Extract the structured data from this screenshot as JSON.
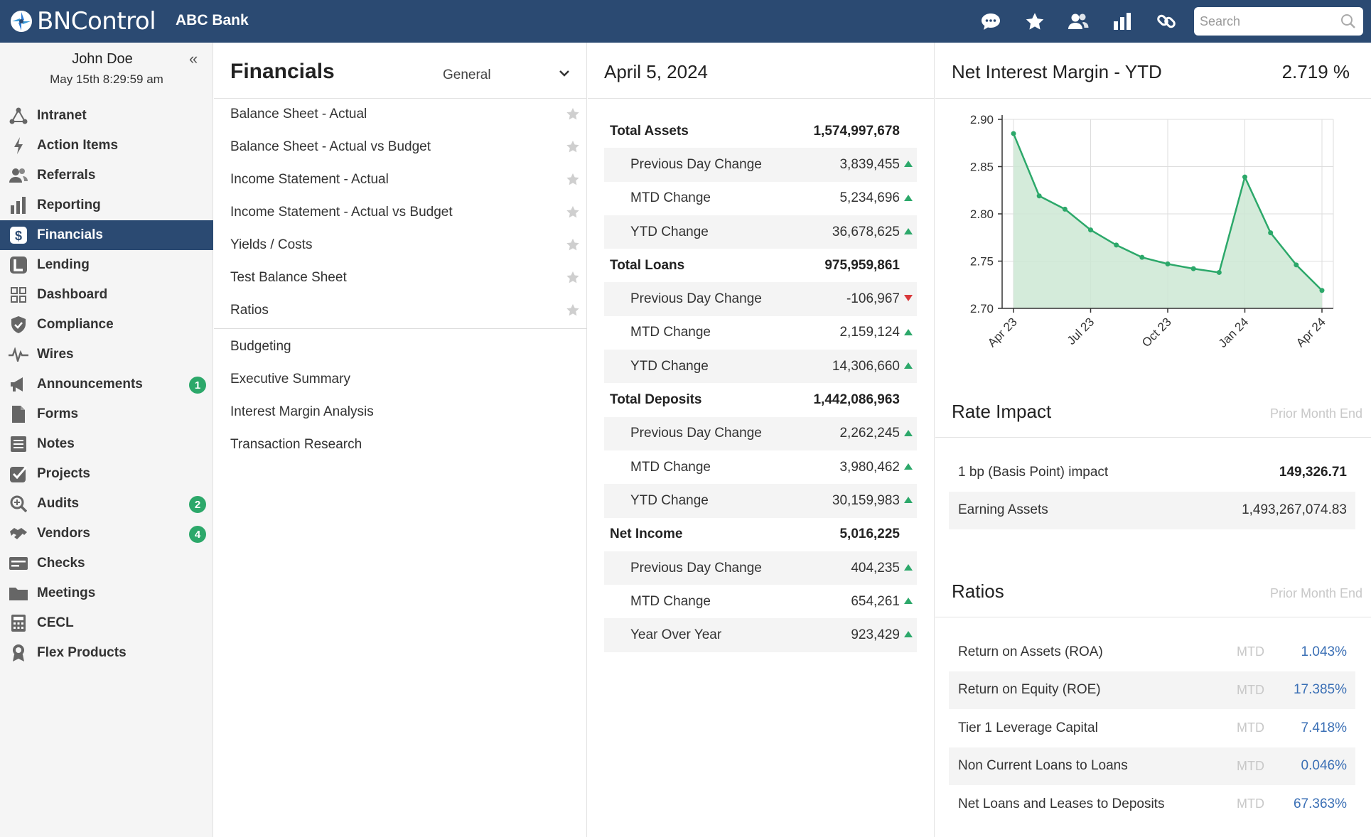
{
  "app": {
    "logo_text": "BNControl",
    "bank_name": "ABC Bank"
  },
  "topbar": {
    "icons": [
      "chat-icon",
      "star-icon",
      "users-icon",
      "bar-chart-icon",
      "link-icon"
    ],
    "search_placeholder": "Search"
  },
  "user": {
    "name": "John Doe",
    "time": "May 15th 8:29:59 am",
    "collapse": "«"
  },
  "sidebar": {
    "items": [
      {
        "label": "Intranet",
        "icon": "network-icon"
      },
      {
        "label": "Action Items",
        "icon": "bolt-icon"
      },
      {
        "label": "Referrals",
        "icon": "users-icon"
      },
      {
        "label": "Reporting",
        "icon": "bar-chart-icon"
      },
      {
        "label": "Financials",
        "icon": "dollar-icon",
        "active": true
      },
      {
        "label": "Lending",
        "icon": "lending-icon"
      },
      {
        "label": "Dashboard",
        "icon": "grid-icon"
      },
      {
        "label": "Compliance",
        "icon": "shield-icon"
      },
      {
        "label": "Wires",
        "icon": "pulse-icon"
      },
      {
        "label": "Announcements",
        "icon": "megaphone-icon",
        "badge": "1"
      },
      {
        "label": "Forms",
        "icon": "file-icon"
      },
      {
        "label": "Notes",
        "icon": "notes-icon"
      },
      {
        "label": "Projects",
        "icon": "check-square-icon"
      },
      {
        "label": "Audits",
        "icon": "magnify-icon",
        "badge": "2"
      },
      {
        "label": "Vendors",
        "icon": "handshake-icon",
        "badge": "4"
      },
      {
        "label": "Checks",
        "icon": "check-card-icon"
      },
      {
        "label": "Meetings",
        "icon": "folder-icon"
      },
      {
        "label": "CECL",
        "icon": "calculator-icon"
      },
      {
        "label": "Flex Products",
        "icon": "award-icon"
      }
    ]
  },
  "financials": {
    "title": "Financials",
    "select_value": "General",
    "starred": [
      "Balance Sheet - Actual",
      "Balance Sheet - Actual vs Budget",
      "Income Statement - Actual",
      "Income Statement - Actual vs Budget",
      "Yields / Costs",
      "Test Balance Sheet",
      "Ratios"
    ],
    "other": [
      "Budgeting",
      "Executive Summary",
      "Interest Margin Analysis",
      "Transaction Research"
    ]
  },
  "summary": {
    "date": "April 5, 2024",
    "rows": [
      {
        "label": "Total Assets",
        "value": "1,574,997,678",
        "kind": "head"
      },
      {
        "label": "Previous Day Change",
        "value": "3,839,455",
        "dir": "up"
      },
      {
        "label": "MTD Change",
        "value": "5,234,696",
        "dir": "up"
      },
      {
        "label": "YTD Change",
        "value": "36,678,625",
        "dir": "up"
      },
      {
        "label": "Total Loans",
        "value": "975,959,861",
        "kind": "head"
      },
      {
        "label": "Previous Day Change",
        "value": "-106,967",
        "dir": "down"
      },
      {
        "label": "MTD Change",
        "value": "2,159,124",
        "dir": "up"
      },
      {
        "label": "YTD Change",
        "value": "14,306,660",
        "dir": "up"
      },
      {
        "label": "Total Deposits",
        "value": "1,442,086,963",
        "kind": "head"
      },
      {
        "label": "Previous Day Change",
        "value": "2,262,245",
        "dir": "up"
      },
      {
        "label": "MTD Change",
        "value": "3,980,462",
        "dir": "up"
      },
      {
        "label": "YTD Change",
        "value": "30,159,983",
        "dir": "up"
      },
      {
        "label": "Net Income",
        "value": "5,016,225",
        "kind": "head"
      },
      {
        "label": "Previous Day Change",
        "value": "404,235",
        "dir": "up"
      },
      {
        "label": "MTD Change",
        "value": "654,261",
        "dir": "up"
      },
      {
        "label": "Year Over Year",
        "value": "923,429",
        "dir": "up"
      }
    ]
  },
  "nim": {
    "title": "Net Interest Margin - YTD",
    "value": "2.719 %"
  },
  "chart_data": {
    "type": "area",
    "title": "",
    "x_tick_labels": [
      "Apr 23",
      "Jul 23",
      "Oct 23",
      "Jan 24",
      "Apr 24"
    ],
    "y_ticks": [
      "2.90",
      "2.85",
      "2.80",
      "2.75",
      "2.70"
    ],
    "ylim": [
      2.7,
      2.9
    ],
    "x": [
      "Apr 23",
      "May 23",
      "Jun 23",
      "Jul 23",
      "Aug 23",
      "Sep 23",
      "Oct 23",
      "Nov 23",
      "Dec 23",
      "Jan 24",
      "Feb 24",
      "Mar 24",
      "Apr 24"
    ],
    "values": [
      2.885,
      2.819,
      2.805,
      2.783,
      2.767,
      2.754,
      2.747,
      2.742,
      2.738,
      2.839,
      2.78,
      2.746,
      2.719
    ],
    "grid": true,
    "colors": {
      "line": "#2ca86a",
      "fill": "#cde8d4"
    }
  },
  "rate_impact": {
    "title": "Rate Impact",
    "subtitle": "Prior Month End",
    "rows": [
      {
        "label": "1 bp (Basis Point) impact",
        "value": "149,326.71",
        "bold": true
      },
      {
        "label": "Earning Assets",
        "value": "1,493,267,074.83",
        "bold": false
      }
    ]
  },
  "ratios": {
    "title": "Ratios",
    "subtitle": "Prior Month End",
    "rows": [
      {
        "label": "Return on Assets (ROA)",
        "period": "MTD",
        "value": "1.043%"
      },
      {
        "label": "Return on Equity (ROE)",
        "period": "MTD",
        "value": "17.385%"
      },
      {
        "label": "Tier 1 Leverage Capital",
        "period": "MTD",
        "value": "7.418%"
      },
      {
        "label": "Non Current Loans to Loans",
        "period": "MTD",
        "value": "0.046%"
      },
      {
        "label": "Net Loans and Leases to Deposits",
        "period": "MTD",
        "value": "67.363%"
      }
    ]
  }
}
